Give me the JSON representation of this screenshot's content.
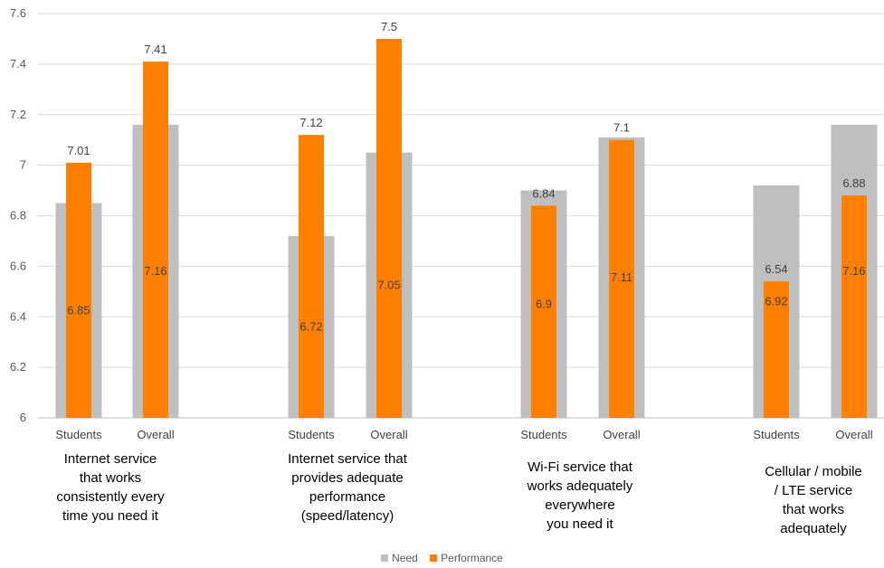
{
  "chart_data": {
    "type": "bar",
    "ylim": [
      6,
      7.6
    ],
    "yticks": [
      "6",
      "6.2",
      "6.4",
      "6.6",
      "6.8",
      "7",
      "7.2",
      "7.4",
      "7.6"
    ],
    "grid": true,
    "legend_position": "bottom",
    "groups": [
      "Internet service\nthat works\nconsistently every\ntime you need it",
      "Internet service that\nprovides adequate\nperformance\n(speed/latency)",
      "Wi-Fi service that\nworks adequately\neverywhere\nyou need it",
      "Cellular / mobile\n/ LTE service\nthat works\nadequately"
    ],
    "categories": [
      "Students",
      "Overall",
      "Students",
      "Overall",
      "Students",
      "Overall",
      "Students",
      "Overall"
    ],
    "series": [
      {
        "name": "Need",
        "color": "#bfbfbf",
        "values": [
          6.85,
          7.16,
          6.72,
          7.05,
          6.9,
          7.11,
          6.92,
          7.16
        ]
      },
      {
        "name": "Performance",
        "color": "#ff8000",
        "values": [
          7.01,
          7.41,
          7.12,
          7.5,
          6.84,
          7.1,
          6.54,
          6.88
        ]
      }
    ],
    "data_labels": {
      "need": [
        "6.85",
        "7.16",
        "6.72",
        "7.05",
        "6.9",
        "7.11",
        "6.92",
        "7.16"
      ],
      "performance": [
        "7.01",
        "7.41",
        "7.12",
        "7.5",
        "6.84",
        "7.1",
        "6.54",
        "6.88"
      ]
    }
  }
}
